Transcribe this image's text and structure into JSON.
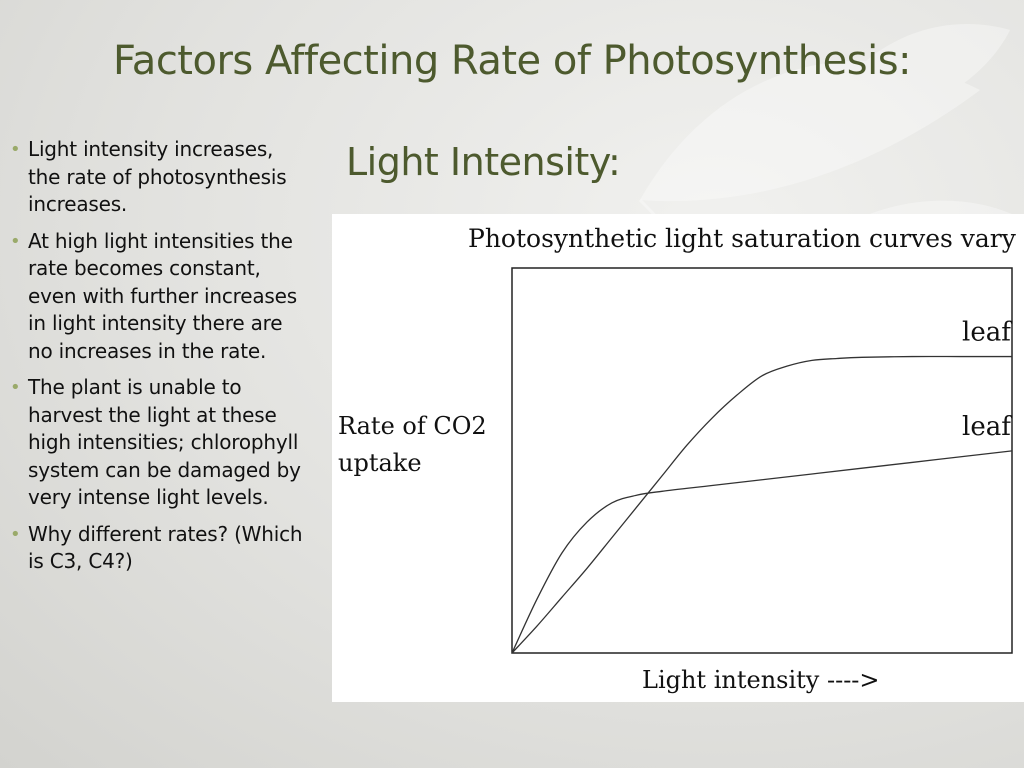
{
  "slide": {
    "title": "Factors Affecting Rate of Photosynthesis:",
    "subtitle": "Light Intensity:",
    "bullets": [
      "Light intensity increases, the rate of photosynthesis increases.",
      "At high light intensities the rate becomes constant, even with further increases in light intensity there are no increases in the rate.",
      "The plant is unable to harvest the light at these high intensities; chlorophyll system can be damaged by very intense light levels.",
      "Why different rates? (Which is C3, C4?)"
    ]
  },
  "chart_data": {
    "type": "line",
    "title": "Photosynthetic light saturation curves vary",
    "xlabel": "Light intensity ---->",
    "ylabel": "Rate of CO2 uptake",
    "axis_ticks": false,
    "grid": false,
    "series": [
      {
        "name": "leaf",
        "color": "#333333",
        "points": [
          [
            0,
            0
          ],
          [
            0.05,
            0.07
          ],
          [
            0.1,
            0.145
          ],
          [
            0.15,
            0.22
          ],
          [
            0.2,
            0.3
          ],
          [
            0.25,
            0.38
          ],
          [
            0.3,
            0.46
          ],
          [
            0.35,
            0.54
          ],
          [
            0.4,
            0.61
          ],
          [
            0.45,
            0.67
          ],
          [
            0.5,
            0.72
          ],
          [
            0.55,
            0.745
          ],
          [
            0.6,
            0.76
          ],
          [
            0.65,
            0.765
          ],
          [
            0.7,
            0.768
          ],
          [
            0.8,
            0.77
          ],
          [
            0.9,
            0.77
          ],
          [
            1.0,
            0.77
          ]
        ]
      },
      {
        "name": "leaf",
        "color": "#333333",
        "points": [
          [
            0,
            0
          ],
          [
            0.05,
            0.14
          ],
          [
            0.1,
            0.26
          ],
          [
            0.15,
            0.34
          ],
          [
            0.2,
            0.39
          ],
          [
            0.25,
            0.41
          ],
          [
            0.3,
            0.42
          ],
          [
            0.4,
            0.435
          ],
          [
            0.5,
            0.45
          ],
          [
            0.6,
            0.465
          ],
          [
            0.7,
            0.48
          ],
          [
            0.8,
            0.495
          ],
          [
            0.9,
            0.51
          ],
          [
            1.0,
            0.525
          ]
        ]
      }
    ]
  }
}
